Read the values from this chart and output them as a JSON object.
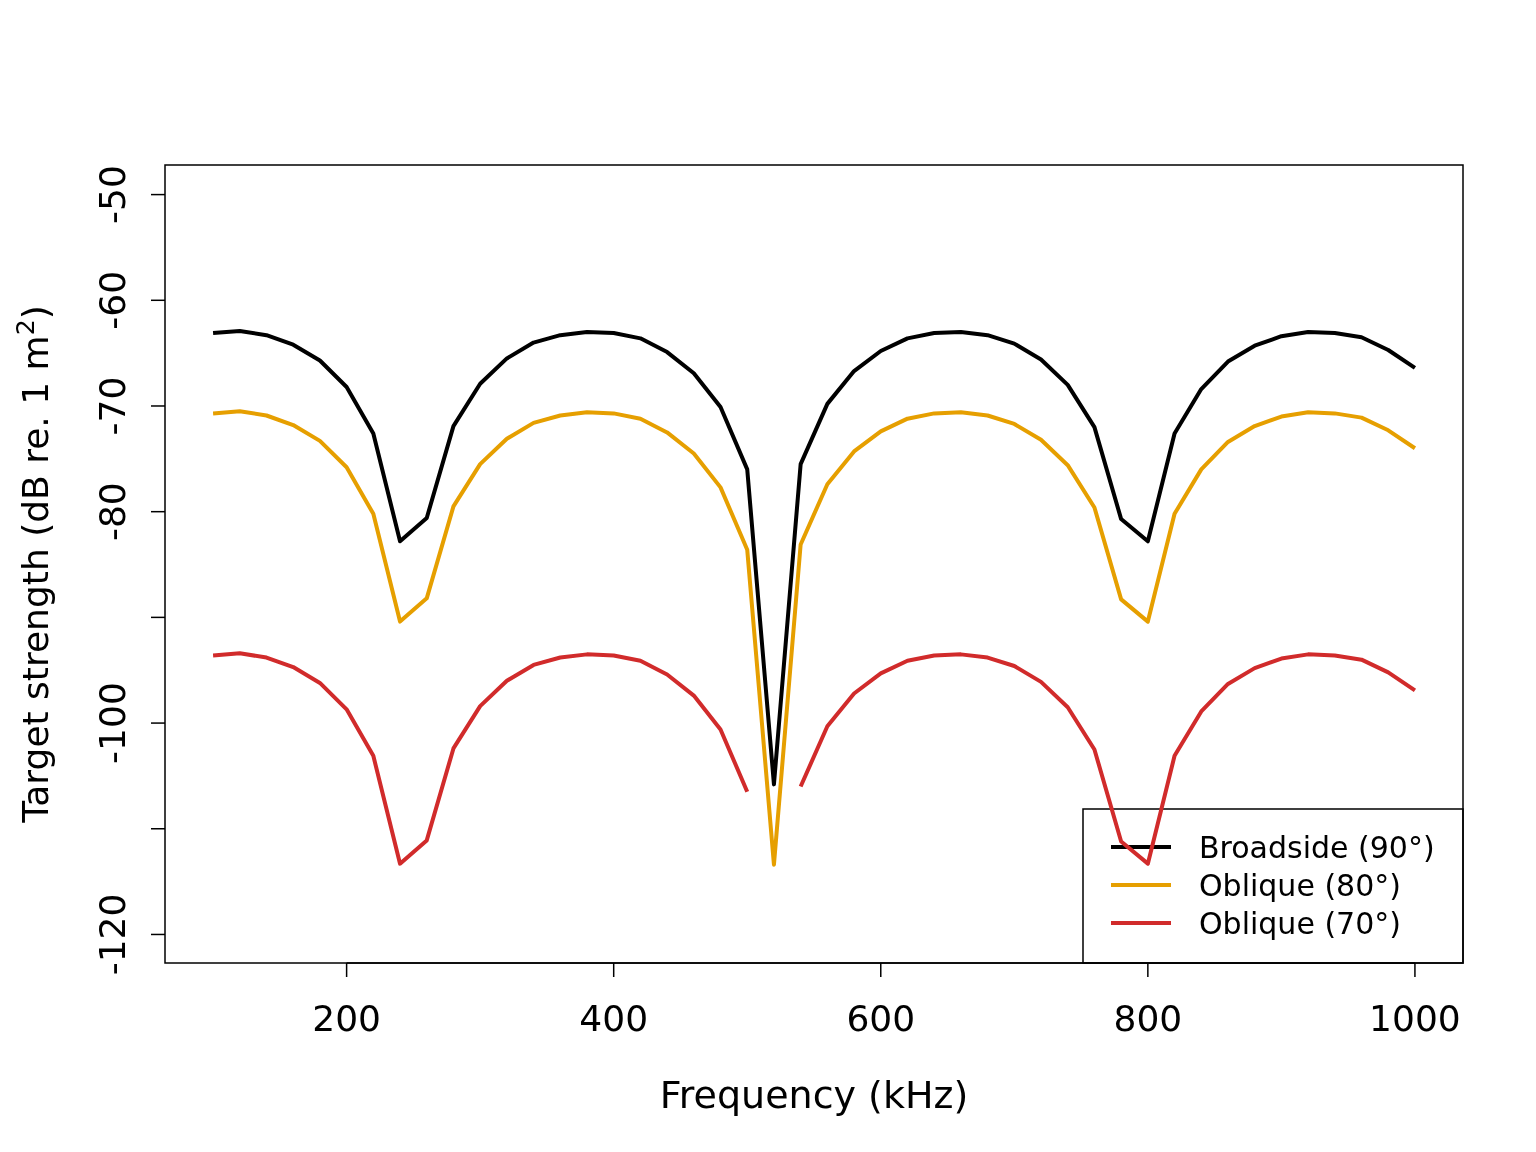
{
  "chart_data": {
    "type": "line",
    "xlabel": "Frequency (kHz)",
    "ylabel": "Target strength (dB re. 1 m$^{2}$)",
    "x": [
      100,
      120,
      140,
      160,
      180,
      200,
      220,
      240,
      260,
      280,
      300,
      320,
      340,
      360,
      380,
      400,
      420,
      440,
      460,
      480,
      500,
      520,
      540,
      560,
      580,
      600,
      620,
      640,
      660,
      680,
      700,
      720,
      740,
      760,
      780,
      800,
      820,
      840,
      860,
      880,
      900,
      920,
      940,
      960,
      980,
      1000
    ],
    "series": [
      {
        "name": "Broadside (90°)",
        "color": "#000000",
        "values": [
          -63.1,
          -62.9,
          -63.3,
          -64.2,
          -65.7,
          -68.2,
          -72.6,
          -82.8,
          -80.6,
          -71.9,
          -67.9,
          -65.5,
          -64.0,
          -63.3,
          -63.0,
          -63.1,
          -63.6,
          -64.9,
          -66.9,
          -70.1,
          -76.0,
          -105.8,
          -75.5,
          -69.8,
          -66.7,
          -64.8,
          -63.6,
          -63.1,
          -63.0,
          -63.3,
          -64.1,
          -65.6,
          -68.0,
          -72.0,
          -80.7,
          -82.8,
          -72.6,
          -68.4,
          -65.8,
          -64.3,
          -63.4,
          -63.0,
          -63.1,
          -63.5,
          -64.7,
          -66.4
        ]
      },
      {
        "name": "Oblique (80°)",
        "color": "#e69f00",
        "values": [
          -70.7,
          -70.5,
          -70.9,
          -71.8,
          -73.3,
          -75.8,
          -80.2,
          -90.4,
          -88.2,
          -79.5,
          -75.5,
          -73.1,
          -71.6,
          -70.9,
          -70.6,
          -70.7,
          -71.2,
          -72.5,
          -74.5,
          -77.7,
          -83.6,
          -113.4,
          -83.1,
          -77.4,
          -74.3,
          -72.4,
          -71.2,
          -70.7,
          -70.6,
          -70.9,
          -71.7,
          -73.2,
          -75.6,
          -79.6,
          -88.3,
          -90.4,
          -80.2,
          -76.0,
          -73.4,
          -71.9,
          -71.0,
          -70.6,
          -70.7,
          -71.1,
          -72.3,
          -74.0
        ]
      },
      {
        "name": "Oblique (70°)",
        "color": "#d12b2b",
        "values": [
          -93.6,
          -93.4,
          -93.8,
          -94.7,
          -96.2,
          -98.7,
          -103.1,
          -113.3,
          -111.1,
          -102.4,
          -98.4,
          -96.0,
          -94.5,
          -93.8,
          -93.5,
          -93.6,
          -94.1,
          -95.4,
          -97.4,
          -100.6,
          -106.5,
          null,
          -106.0,
          -100.3,
          -97.2,
          -95.3,
          -94.1,
          -93.6,
          -93.5,
          -93.8,
          -94.6,
          -96.1,
          -98.5,
          -102.5,
          -111.2,
          -113.3,
          -103.1,
          -98.9,
          -96.3,
          -94.8,
          -93.9,
          -93.5,
          -93.6,
          -94.0,
          -95.2,
          -96.9
        ]
      }
    ],
    "xlim": [
      64,
      1036
    ],
    "xticks": [
      200,
      400,
      600,
      800,
      1000
    ],
    "ylim": [
      -122.7,
      -47.2
    ],
    "yticks": [
      -50,
      -60,
      -70,
      -80,
      {
        "value": -90,
        "label": null
      },
      -100,
      {
        "value": -110,
        "label": null
      },
      -120
    ],
    "legend": "bottom right",
    "grid": false,
    "marker": "none",
    "line_style": "solid"
  }
}
